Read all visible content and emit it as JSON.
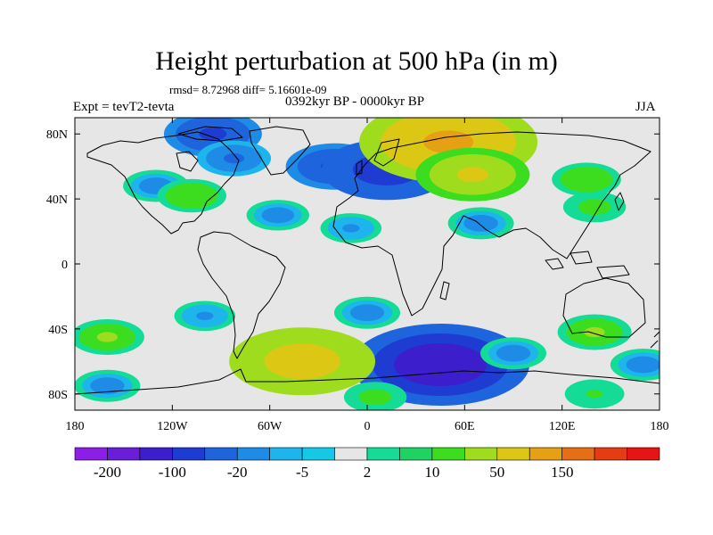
{
  "header": {
    "title": "Height perturbation at 500 hPa (in m)",
    "stats": "rmsd= 8.72968  diff= 5.16601e-09",
    "period": "0392kyr BP - 0000kyr BP",
    "experiment": "Expt = tevT2-tevta",
    "season": "JJA"
  },
  "chart_data": {
    "type": "heatmap",
    "title": "Height perturbation at 500 hPa (in m)",
    "subtitle": "0392kyr BP - 0000kyr BP",
    "projection": "cylindrical equidistant, global",
    "xlim": [
      -180,
      180
    ],
    "ylim": [
      -90,
      90
    ],
    "x_ticks": [
      {
        "value": -180,
        "label": "180"
      },
      {
        "value": -120,
        "label": "120W"
      },
      {
        "value": -60,
        "label": "60W"
      },
      {
        "value": 0,
        "label": "0"
      },
      {
        "value": 60,
        "label": "60E"
      },
      {
        "value": 120,
        "label": "120E"
      },
      {
        "value": 180,
        "label": "180"
      }
    ],
    "y_ticks": [
      {
        "value": 80,
        "label": "80N"
      },
      {
        "value": 40,
        "label": "40N"
      },
      {
        "value": 0,
        "label": "0"
      },
      {
        "value": -40,
        "label": "40S"
      },
      {
        "value": -80,
        "label": "80S"
      }
    ],
    "colorbar": {
      "colors": [
        "#8c1ee6",
        "#6a1ed8",
        "#3c1ecc",
        "#1e3cd2",
        "#1e64dc",
        "#1e8ce6",
        "#1eb4ec",
        "#14c8e6",
        "#e6e6e6",
        "#14dc96",
        "#1ed264",
        "#3cdc1e",
        "#a0dc1e",
        "#dcc814",
        "#e6a014",
        "#e66e14",
        "#e63c14",
        "#e61414"
      ],
      "labels": [
        {
          "boundary": 1,
          "text": "-200"
        },
        {
          "boundary": 3,
          "text": "-100"
        },
        {
          "boundary": 5,
          "text": "-20"
        },
        {
          "boundary": 7,
          "text": "-5"
        },
        {
          "boundary": 9,
          "text": "2"
        },
        {
          "boundary": 11,
          "text": "10"
        },
        {
          "boundary": 13,
          "text": "50"
        },
        {
          "boundary": 15,
          "text": "150"
        }
      ]
    },
    "anomaly_centers": [
      {
        "lon": -95,
        "lat": 80,
        "value": -30
      },
      {
        "lon": -20,
        "lat": 60,
        "value": -30
      },
      {
        "lon": 12,
        "lat": 58,
        "value": -50
      },
      {
        "lon": -82,
        "lat": 65,
        "value": -15
      },
      {
        "lon": -130,
        "lat": 48,
        "value": -10
      },
      {
        "lon": -55,
        "lat": 30,
        "value": -8
      },
      {
        "lon": 50,
        "lat": 75,
        "value": 80
      },
      {
        "lon": 65,
        "lat": 55,
        "value": 40
      },
      {
        "lon": -108,
        "lat": 42,
        "value": 12
      },
      {
        "lon": 135,
        "lat": 52,
        "value": 12
      },
      {
        "lon": 70,
        "lat": 25,
        "value": -10
      },
      {
        "lon": 140,
        "lat": 35,
        "value": 8
      },
      {
        "lon": -10,
        "lat": 22,
        "value": -7
      },
      {
        "lon": 0,
        "lat": -30,
        "value": -10
      },
      {
        "lon": 45,
        "lat": -62,
        "value": -80
      },
      {
        "lon": -40,
        "lat": -60,
        "value": 60
      },
      {
        "lon": -160,
        "lat": -45,
        "value": 15
      },
      {
        "lon": 140,
        "lat": -42,
        "value": 15
      },
      {
        "lon": 90,
        "lat": -55,
        "value": -10
      },
      {
        "lon": -100,
        "lat": -32,
        "value": -7
      },
      {
        "lon": 170,
        "lat": -62,
        "value": -10
      },
      {
        "lon": -160,
        "lat": -75,
        "value": -10
      },
      {
        "lon": 5,
        "lat": -82,
        "value": 8
      },
      {
        "lon": 140,
        "lat": -80,
        "value": 6
      }
    ]
  }
}
